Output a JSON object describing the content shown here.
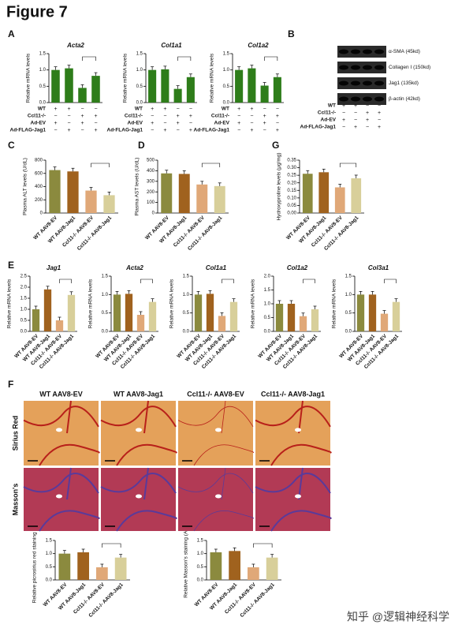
{
  "title": "Figure 7",
  "panel_letters": [
    "A",
    "B",
    "C",
    "D",
    "G",
    "E",
    "F"
  ],
  "chart_data": [
    {
      "type": "bar",
      "title": "Acta2",
      "y_label": "Relative mRNA levels",
      "categories": [
        null,
        null,
        null,
        null
      ],
      "values": [
        1.0,
        1.05,
        0.45,
        0.82
      ],
      "colors": [
        "#2e7d1a",
        "#2e7d1a",
        "#2e7d1a",
        "#2e7d1a"
      ],
      "ylim": [
        0,
        1.5
      ],
      "yticks": [
        {
          "value": 0,
          "label": "0.0"
        },
        {
          "value": 0.5,
          "label": "0.5"
        },
        {
          "value": 1,
          "label": "1.0"
        },
        {
          "value": 1.5,
          "label": "1.5"
        }
      ],
      "conditions": [
        {
          "label": "WT",
          "signs": [
            "+",
            "+",
            "−",
            "−"
          ]
        },
        {
          "label": "Ccl11-/-",
          "signs": [
            "−",
            "−",
            "+",
            "+"
          ]
        },
        {
          "label": "Ad-EV",
          "signs": [
            "+",
            "−",
            "+",
            "−"
          ]
        },
        {
          "label": "Ad-FLAG-Jag1",
          "signs": [
            "−",
            "+",
            "−",
            "+"
          ]
        }
      ]
    },
    {
      "type": "bar",
      "title": "Col1a1",
      "y_label": "Relative mRNA levels",
      "categories": [
        null,
        null,
        null,
        null
      ],
      "values": [
        1.0,
        1.02,
        0.42,
        0.78
      ],
      "colors": [
        "#2e7d1a",
        "#2e7d1a",
        "#2e7d1a",
        "#2e7d1a"
      ],
      "ylim": [
        0,
        1.5
      ],
      "yticks": [
        {
          "value": 0,
          "label": "0.0"
        },
        {
          "value": 0.5,
          "label": "0.5"
        },
        {
          "value": 1,
          "label": "1.0"
        },
        {
          "value": 1.5,
          "label": "1.5"
        }
      ],
      "conditions": [
        {
          "label": "WT",
          "signs": [
            "+",
            "+",
            "−",
            "−"
          ]
        },
        {
          "label": "Ccl11-/-",
          "signs": [
            "−",
            "−",
            "+",
            "+"
          ]
        },
        {
          "label": "Ad-EV",
          "signs": [
            "+",
            "−",
            "+",
            "−"
          ]
        },
        {
          "label": "Ad-FLAG-Jag1",
          "signs": [
            "−",
            "+",
            "−",
            "+"
          ]
        }
      ]
    },
    {
      "type": "bar",
      "title": "Col1a2",
      "y_label": "Relative mRNA levels",
      "categories": [
        null,
        null,
        null,
        null
      ],
      "values": [
        1.0,
        1.05,
        0.52,
        0.78
      ],
      "colors": [
        "#2e7d1a",
        "#2e7d1a",
        "#2e7d1a",
        "#2e7d1a"
      ],
      "ylim": [
        0,
        1.5
      ],
      "yticks": [
        {
          "value": 0,
          "label": "0.0"
        },
        {
          "value": 0.5,
          "label": "0.5"
        },
        {
          "value": 1,
          "label": "1.0"
        },
        {
          "value": 1.5,
          "label": "1.5"
        }
      ],
      "conditions": [
        {
          "label": "WT",
          "signs": [
            "+",
            "+",
            "−",
            "−"
          ]
        },
        {
          "label": "Ccl11-/-",
          "signs": [
            "−",
            "−",
            "+",
            "+"
          ]
        },
        {
          "label": "Ad-EV",
          "signs": [
            "+",
            "−",
            "+",
            "−"
          ]
        },
        {
          "label": "Ad-FLAG-Jag1",
          "signs": [
            "−",
            "+",
            "−",
            "+"
          ]
        }
      ]
    },
    {
      "type": "bar",
      "y_label": "Plasma ALT levels (U/dL)",
      "categories": [
        "WT AAV8-EV",
        "WT AAV8-Jag1",
        "Ccl11-/- AAV8-EV",
        "Ccl11-/- AAV8-Jag1"
      ],
      "values": [
        650,
        630,
        340,
        270
      ],
      "colors": [
        "#8b8a3e",
        "#a0621e",
        "#e0a878",
        "#d8cf9a"
      ],
      "ylim": [
        0,
        800
      ],
      "yticks": [
        0,
        200,
        400,
        600,
        800
      ]
    },
    {
      "type": "bar",
      "y_label": "Plasma AST levels (U/dL)",
      "categories": [
        "WT AAV8-EV",
        "WT AAV8-Jag1",
        "Ccl11-/- AAV8-EV",
        "Ccl11-/- AAV8-Jag1"
      ],
      "values": [
        375,
        370,
        270,
        255
      ],
      "colors": [
        "#8b8a3e",
        "#a0621e",
        "#e0a878",
        "#d8cf9a"
      ],
      "ylim": [
        0,
        500
      ],
      "yticks": [
        0,
        100,
        200,
        300,
        400,
        500
      ]
    },
    {
      "type": "bar",
      "y_label": "Hydroxyproline levels (μg/mg)",
      "categories": [
        "WT AAV8-EV",
        "WT AAV8-Jag1",
        "Ccl11-/- AAV8-EV",
        "Ccl11-/- AAV8-Jag1"
      ],
      "values": [
        0.26,
        0.27,
        0.17,
        0.23
      ],
      "colors": [
        "#8b8a3e",
        "#a0621e",
        "#e0a878",
        "#d8cf9a"
      ],
      "ylim": [
        0,
        0.35
      ],
      "yticks": [
        {
          "value": 0,
          "label": "0.00"
        },
        {
          "value": 0.05,
          "label": "0.05"
        },
        {
          "value": 0.1,
          "label": "0.10"
        },
        {
          "value": 0.15,
          "label": "0.15"
        },
        {
          "value": 0.2,
          "label": "0.20"
        },
        {
          "value": 0.25,
          "label": "0.25"
        },
        {
          "value": 0.3,
          "label": "0.30"
        },
        {
          "value": 0.35,
          "label": "0.35"
        }
      ]
    },
    {
      "type": "bar",
      "title": "Jag1",
      "y_label": "Relative mRNA levels",
      "categories": [
        "WT AAV8-EV",
        "WT AAV8-Jag1",
        "Ccl11-/- AAV8-EV",
        "Ccl11-/- AAV8-Jag1"
      ],
      "values": [
        1.0,
        1.9,
        0.5,
        1.65
      ],
      "colors": [
        "#8b8a3e",
        "#a0621e",
        "#e0a878",
        "#d8cf9a"
      ],
      "ylim": [
        0,
        2.5
      ],
      "yticks": [
        {
          "value": 0,
          "label": "0.0"
        },
        {
          "value": 0.5,
          "label": "0.5"
        },
        {
          "value": 1,
          "label": "1.0"
        },
        {
          "value": 1.5,
          "label": "1.5"
        },
        {
          "value": 2,
          "label": "2.0"
        },
        {
          "value": 2.5,
          "label": "2.5"
        }
      ]
    },
    {
      "type": "bar",
      "title": "Acta2",
      "y_label": "Relative mRNA levels",
      "categories": [
        "WT AAV8-EV",
        "WT AAV8-Jag1",
        "Ccl11-/- AAV8-EV",
        "Ccl11-/- AAV8-Jag1"
      ],
      "values": [
        1.0,
        1.02,
        0.45,
        0.8
      ],
      "colors": [
        "#8b8a3e",
        "#a0621e",
        "#e0a878",
        "#d8cf9a"
      ],
      "ylim": [
        0,
        1.5
      ],
      "yticks": [
        {
          "value": 0,
          "label": "0.0"
        },
        {
          "value": 0.5,
          "label": "0.5"
        },
        {
          "value": 1,
          "label": "1.0"
        },
        {
          "value": 1.5,
          "label": "1.5"
        }
      ]
    },
    {
      "type": "bar",
      "title": "Col1a1",
      "y_label": "Relative mRNA levels",
      "categories": [
        "WT AAV8-EV",
        "WT AAV8-Jag1",
        "Ccl11-/- AAV8-EV",
        "Ccl11-/- AAV8-Jag1"
      ],
      "values": [
        1.0,
        1.02,
        0.42,
        0.8
      ],
      "colors": [
        "#8b8a3e",
        "#a0621e",
        "#e0a878",
        "#d8cf9a"
      ],
      "ylim": [
        0,
        1.5
      ],
      "yticks": [
        {
          "value": 0,
          "label": "0.0"
        },
        {
          "value": 0.5,
          "label": "0.5"
        },
        {
          "value": 1,
          "label": "1.0"
        },
        {
          "value": 1.5,
          "label": "1.5"
        }
      ]
    },
    {
      "type": "bar",
      "title": "Col1a2",
      "y_label": "Relative mRNA levels",
      "categories": [
        "WT AAV8-EV",
        "WT AAV8-Jag1",
        "Ccl11-/- AAV8-EV",
        "Ccl11-/- AAV8-Jag1"
      ],
      "values": [
        1.0,
        1.0,
        0.55,
        0.8
      ],
      "colors": [
        "#8b8a3e",
        "#a0621e",
        "#e0a878",
        "#d8cf9a"
      ],
      "ylim": [
        0,
        2
      ],
      "yticks": [
        {
          "value": 0,
          "label": "0.0"
        },
        {
          "value": 0.5,
          "label": "0.5"
        },
        {
          "value": 1,
          "label": "1.0"
        },
        {
          "value": 1.5,
          "label": "1.5"
        },
        {
          "value": 2,
          "label": "2.0"
        }
      ]
    },
    {
      "type": "bar",
      "title": "Col3a1",
      "y_label": "Relative mRNA levels",
      "categories": [
        "WT AAV8-EV",
        "WT AAV8-Jag1",
        "Ccl11-/- AAV8-EV",
        "Ccl11-/- AAV8-Jag1"
      ],
      "values": [
        1.0,
        1.0,
        0.48,
        0.8
      ],
      "colors": [
        "#8b8a3e",
        "#a0621e",
        "#e0a878",
        "#d8cf9a"
      ],
      "ylim": [
        0,
        1.5
      ],
      "yticks": [
        {
          "value": 0,
          "label": "0.0"
        },
        {
          "value": 0.5,
          "label": "0.5"
        },
        {
          "value": 1,
          "label": "1.0"
        },
        {
          "value": 1.5,
          "label": "1.5"
        }
      ]
    },
    {
      "type": "bar",
      "y_label": "Relative picrosirius red staining (A.U.)",
      "categories": [
        "WT AAV8-EV",
        "WT AAV8-Jag1",
        "Ccl11-/- AAV8-EV",
        "Ccl11-/- AAV8-Jag1"
      ],
      "values": [
        1.0,
        1.05,
        0.48,
        0.85
      ],
      "colors": [
        "#8b8a3e",
        "#a0621e",
        "#e0a878",
        "#d8cf9a"
      ],
      "ylim": [
        0,
        1.5
      ],
      "yticks": [
        {
          "value": 0,
          "label": "0.0"
        },
        {
          "value": 0.5,
          "label": "0.5"
        },
        {
          "value": 1,
          "label": "1.0"
        },
        {
          "value": 1.5,
          "label": "1.5"
        }
      ]
    },
    {
      "type": "bar",
      "y_label": "Relative Masson's staining (A.U.)",
      "categories": [
        "WT AAV8-EV",
        "WT AAV8-Jag1",
        "Ccl11-/- AAV8-EV",
        "Ccl11-/- AAV8-Jag1"
      ],
      "values": [
        1.05,
        1.1,
        0.48,
        0.85
      ],
      "colors": [
        "#8b8a3e",
        "#a0621e",
        "#e0a878",
        "#d8cf9a"
      ],
      "ylim": [
        0,
        1.5
      ],
      "yticks": [
        {
          "value": 0,
          "label": "0.0"
        },
        {
          "value": 0.5,
          "label": "0.5"
        },
        {
          "value": 1,
          "label": "1.0"
        },
        {
          "value": 1.5,
          "label": "1.5"
        }
      ]
    }
  ],
  "blot": {
    "bands": [
      "α-SMA (45kd)",
      "Collagen I (150kd)",
      "Jag1 (135kd)",
      "β-actin (42kd)"
    ],
    "conditions": [
      {
        "label": "WT",
        "signs": [
          "+",
          "+",
          "−",
          "−"
        ]
      },
      {
        "label": "Ccl11-/-",
        "signs": [
          "−",
          "−",
          "+",
          "+"
        ]
      },
      {
        "label": "Ad-EV",
        "signs": [
          "+",
          "−",
          "+",
          "−"
        ]
      },
      {
        "label": "Ad-FLAG-Jag1",
        "signs": [
          "−",
          "+",
          "−",
          "+"
        ]
      }
    ]
  },
  "histology": {
    "columns": [
      "WT AAV8-EV",
      "WT AAV8-Jag1",
      "Ccl11-/- AAV8-EV",
      "Ccl11-/- AAV8-Jag1"
    ],
    "rows": [
      "Sirius Red",
      "Masson's"
    ]
  },
  "watermark": "知乎 @逻辑神经科学"
}
